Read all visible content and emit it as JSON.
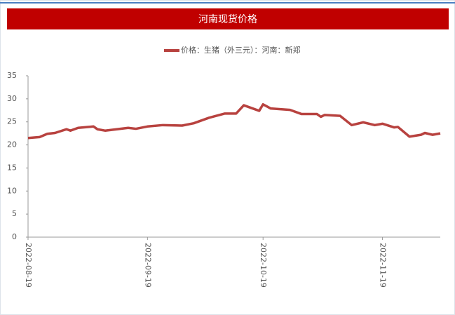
{
  "chart_data": {
    "type": "line",
    "title": "河南现货价格",
    "x": [
      "2022-08-19",
      "2022-08-22",
      "2022-08-24",
      "2022-08-26",
      "2022-08-29",
      "2022-08-30",
      "2022-09-01",
      "2022-09-05",
      "2022-09-06",
      "2022-09-08",
      "2022-09-11",
      "2022-09-14",
      "2022-09-16",
      "2022-09-19",
      "2022-09-23",
      "2022-09-28",
      "2022-10-01",
      "2022-10-05",
      "2022-10-09",
      "2022-10-12",
      "2022-10-14",
      "2022-10-18",
      "2022-10-19",
      "2022-10-21",
      "2022-10-26",
      "2022-10-29",
      "2022-11-02",
      "2022-11-03",
      "2022-11-04",
      "2022-11-08",
      "2022-11-11",
      "2022-11-14",
      "2022-11-17",
      "2022-11-19",
      "2022-11-22",
      "2022-11-23",
      "2022-11-26",
      "2022-11-29",
      "2022-11-30",
      "2022-12-02",
      "2022-12-04"
    ],
    "series": [
      {
        "name": "价格：生猪（外三元）：河南：新郑",
        "color": "#b8423f",
        "values": [
          21.5,
          21.7,
          22.4,
          22.6,
          23.4,
          23.1,
          23.7,
          24.0,
          23.4,
          23.1,
          23.4,
          23.7,
          23.5,
          24.0,
          24.3,
          24.2,
          24.7,
          25.9,
          26.8,
          26.8,
          28.6,
          27.4,
          28.8,
          27.9,
          27.6,
          26.7,
          26.7,
          26.1,
          26.5,
          26.3,
          24.3,
          24.9,
          24.3,
          24.6,
          23.8,
          23.9,
          21.8,
          22.2,
          22.6,
          22.2,
          22.5
        ]
      }
    ],
    "xlim": [
      "2022-08-19",
      "2022-12-04"
    ],
    "xticks": [
      "2022-08-19",
      "2022-09-19",
      "2022-10-19",
      "2022-11-19"
    ],
    "ylim": [
      0,
      35
    ],
    "yticks": [
      0,
      5,
      10,
      15,
      20,
      25,
      30,
      35
    ],
    "legend": "top"
  }
}
